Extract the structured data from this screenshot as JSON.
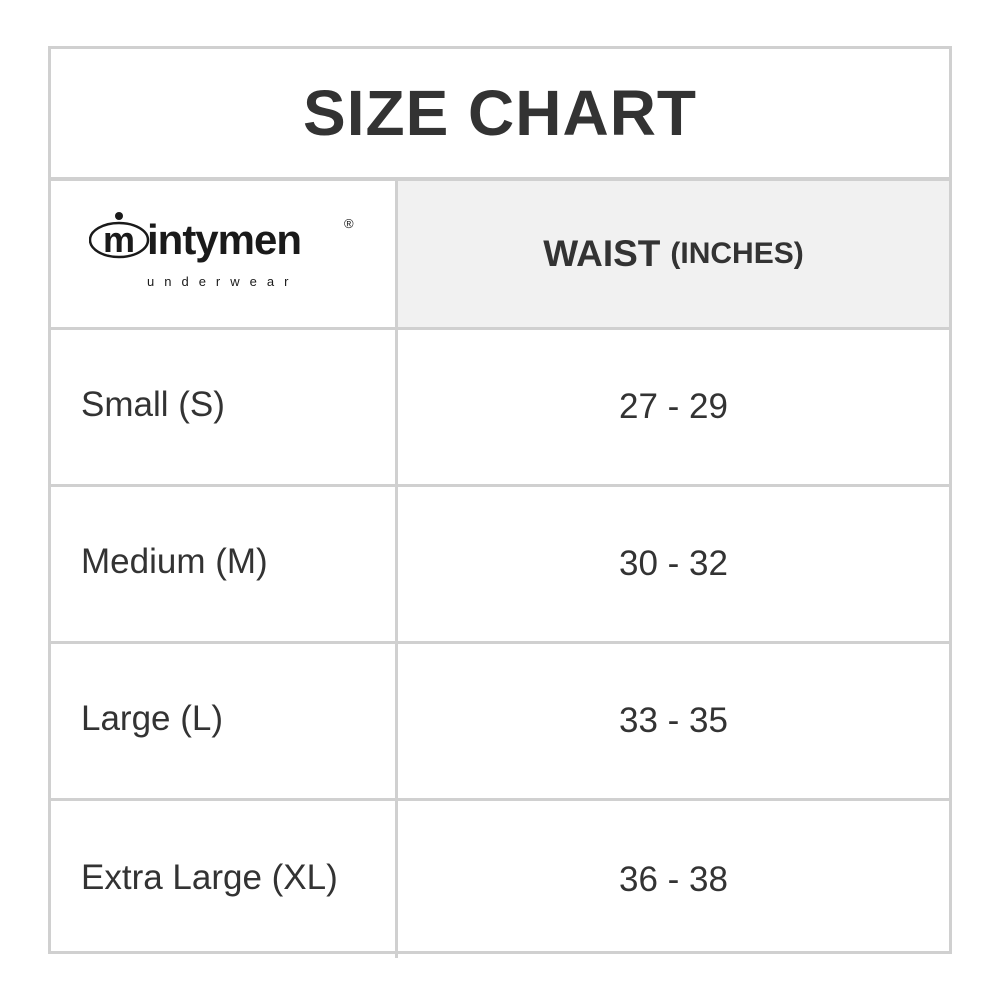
{
  "title": "SIZE CHART",
  "logo": {
    "brand": "intymen",
    "tagline": "underwear",
    "registered": "®"
  },
  "header": {
    "measure": "WAIST",
    "unit": "(INCHES)"
  },
  "rows": [
    {
      "size": "Small (S)",
      "waist": "27 - 29"
    },
    {
      "size": "Medium (M)",
      "waist": "30 - 32"
    },
    {
      "size": "Large (L)",
      "waist": "33 - 35"
    },
    {
      "size": "Extra Large (XL)",
      "waist": "36 - 38"
    }
  ],
  "colors": {
    "border": "#d0d0d0",
    "header_bg": "#f1f1f1",
    "text": "#333333"
  }
}
